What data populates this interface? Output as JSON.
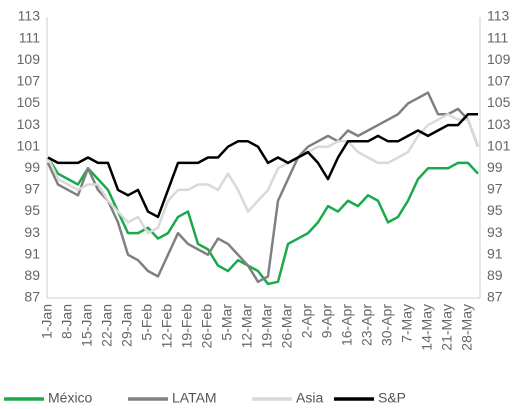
{
  "chart_data": {
    "type": "line",
    "categories": [
      "1-Jan",
      null,
      "8-Jan",
      null,
      "15-Jan",
      null,
      "22-Jan",
      null,
      "29-Jan",
      null,
      "5-Feb",
      null,
      "12-Feb",
      null,
      "19-Feb",
      null,
      "26-Feb",
      null,
      "5-Mar",
      null,
      "12-Mar",
      null,
      "19-Mar",
      null,
      "26-Mar",
      null,
      "2-Apr",
      null,
      "9-Apr",
      null,
      "16-Apr",
      null,
      "23-Apr",
      null,
      "30-Apr",
      null,
      "7-May",
      null,
      "14-May",
      null,
      "21-May",
      null,
      "28-May",
      null
    ],
    "series": [
      {
        "name": "México",
        "color": "#1aaa4a",
        "values": [
          100,
          98.5,
          98,
          97.5,
          99,
          98,
          97,
          95,
          93,
          93,
          93.5,
          92.5,
          93,
          94.5,
          95,
          92,
          91.5,
          90,
          89.5,
          90.5,
          90,
          89.5,
          88.3,
          88.5,
          92,
          92.5,
          93,
          94,
          95.5,
          95,
          96,
          95.5,
          96.5,
          96,
          94,
          94.5,
          96,
          98,
          99,
          99,
          99,
          99.5,
          99.5,
          98.5
        ]
      },
      {
        "name": "LATAM",
        "color": "#808080",
        "values": [
          99.5,
          97.5,
          97,
          96.5,
          99,
          97,
          96,
          94,
          91,
          90.5,
          89.5,
          89,
          91,
          93,
          92,
          91.5,
          91,
          92.5,
          92,
          91,
          90,
          88.5,
          89,
          96,
          98,
          100,
          101,
          101.5,
          102,
          101.5,
          102.5,
          102,
          102.5,
          103,
          103.5,
          104,
          105,
          105.5,
          106,
          104,
          104,
          104.5,
          103.5,
          101
        ]
      },
      {
        "name": "Asia",
        "color": "#d9d9d9",
        "values": [
          100,
          98,
          97.5,
          97,
          97.5,
          97.5,
          96,
          95,
          94,
          94.5,
          93,
          93.5,
          96,
          97,
          97,
          97.5,
          97.5,
          97,
          98.5,
          97,
          95,
          96,
          97,
          99,
          99.5,
          100,
          100.5,
          101,
          101,
          101.5,
          101.5,
          100.5,
          100,
          99.5,
          99.5,
          100,
          100.5,
          102,
          103,
          103.5,
          104,
          103.5,
          103.5,
          101
        ]
      },
      {
        "name": "S&P",
        "color": "#000000",
        "values": [
          100,
          99.5,
          99.5,
          99.5,
          100,
          99.5,
          99.5,
          97,
          96.5,
          97,
          95,
          94.5,
          97,
          99.5,
          99.5,
          99.5,
          100,
          100,
          101,
          101.5,
          101.5,
          101,
          99.5,
          100,
          99.5,
          100,
          100.5,
          99.5,
          98,
          100,
          101.5,
          101.5,
          101.5,
          102,
          101.5,
          101.5,
          102,
          102.5,
          102,
          102.5,
          103,
          103,
          104,
          104
        ]
      }
    ],
    "ylim": [
      87,
      113
    ],
    "yticks": [
      87,
      89,
      91,
      93,
      95,
      97,
      99,
      101,
      103,
      105,
      107,
      109,
      111,
      113
    ],
    "y2lim": [
      87,
      113
    ],
    "y2ticks": [
      87,
      89,
      91,
      93,
      95,
      97,
      99,
      101,
      103,
      105,
      107,
      109,
      111,
      113
    ],
    "legend": "bottom"
  }
}
